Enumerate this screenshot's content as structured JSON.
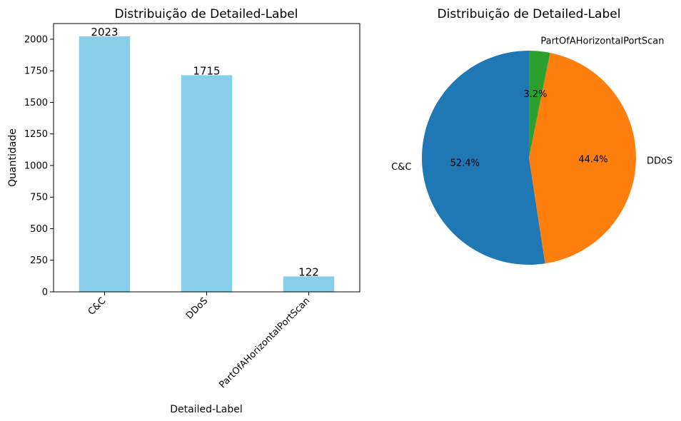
{
  "chart_data": [
    {
      "type": "bar",
      "title": "Distribuição de Detailed-Label",
      "xlabel": "Detailed-Label",
      "ylabel": "Quantidade",
      "categories": [
        "C&C",
        "DDoS",
        "PartOfAHorizontalPortScan"
      ],
      "values": [
        2023,
        1715,
        122
      ],
      "data_labels": [
        "2023",
        "1715",
        "122"
      ],
      "ylim": [
        0,
        2124
      ],
      "yticks": [
        0,
        250,
        500,
        750,
        1000,
        1250,
        1500,
        1750,
        2000
      ],
      "ytick_labels": [
        "0",
        "250",
        "500",
        "750",
        "1000",
        "1250",
        "1500",
        "1750",
        "2000"
      ],
      "bar_color": "#87ceeb",
      "grid": false
    },
    {
      "type": "pie",
      "title": "Distribuição de Detailed-Label",
      "labels": [
        "C&C",
        "DDoS",
        "PartOfAHorizontalPortScan"
      ],
      "values": [
        2023,
        1715,
        122
      ],
      "percent_labels": [
        "52.4%",
        "44.4%",
        "3.2%"
      ],
      "colors": [
        "#1f77b4",
        "#ff7f0e",
        "#2ca02c"
      ],
      "start_angle_deg": 90,
      "direction": "counterclockwise"
    }
  ]
}
